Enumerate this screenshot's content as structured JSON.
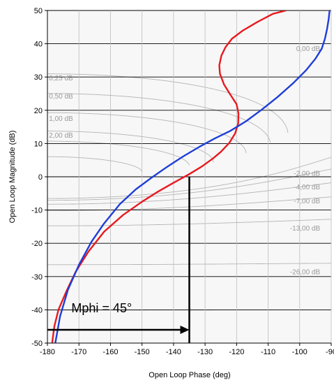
{
  "chart_data": {
    "type": "line",
    "xlabel": "Open Loop Phase (deg)",
    "ylabel": "Open Loop Magnitude (dB)",
    "xlim": [
      -180,
      -90
    ],
    "ylim": [
      -50,
      50
    ],
    "x_ticks": [
      -180,
      -170,
      -160,
      -150,
      -140,
      -130,
      -120,
      -110,
      -100,
      -90
    ],
    "x_tick_labels": [
      "-180",
      "-170",
      "-160",
      "-150",
      "-140",
      "-130",
      "-120",
      "-110",
      "-100",
      "-90"
    ],
    "y_ticks": [
      -50,
      -40,
      -30,
      -20,
      -10,
      0,
      10,
      20,
      30,
      40,
      50
    ],
    "y_tick_labels": [
      "-50",
      "-40",
      "-30",
      "-20",
      "-10",
      "0",
      "10",
      "20",
      "30",
      "40",
      "50"
    ],
    "grid": true,
    "background": "#f7f7f7",
    "contour_labels": [
      {
        "text": "0,00 dB",
        "x": -93.5,
        "y": 37.8,
        "anchor": "end"
      },
      {
        "text": "0,25 dB",
        "x": -179.5,
        "y": 29.0,
        "anchor": "start"
      },
      {
        "text": "0,50 dB",
        "x": -179.5,
        "y": 23.5,
        "anchor": "start"
      },
      {
        "text": "1,00 dB",
        "x": -179.5,
        "y": 16.8,
        "anchor": "start"
      },
      {
        "text": "2,00 dB",
        "x": -179.5,
        "y": 11.8,
        "anchor": "start"
      },
      {
        "text": "-2,00 dB",
        "x": -93.5,
        "y": 0.3,
        "anchor": "end"
      },
      {
        "text": "-4,00 dB",
        "x": -93.5,
        "y": -3.8,
        "anchor": "end"
      },
      {
        "text": "-7,00 dB",
        "x": -93.5,
        "y": -8.0,
        "anchor": "end"
      },
      {
        "text": "-13,00 dB",
        "x": -93.5,
        "y": -16.2,
        "anchor": "end"
      },
      {
        "text": "-26,00 dB",
        "x": -93.5,
        "y": -29.3,
        "anchor": "end"
      }
    ],
    "series": [
      {
        "color": "#e8191e",
        "x": [
          -178.5,
          -177.8,
          -176.5,
          -174,
          -171,
          -167,
          -162,
          -156,
          -150,
          -145,
          -140,
          -135,
          -131,
          -127.5,
          -125,
          -122.3,
          -120.5,
          -119.5,
          -119.4,
          -120,
          -122,
          -124,
          -125.3,
          -125.5,
          -124.8,
          -123.5,
          -121.5,
          -118,
          -113.5,
          -108.5,
          -104.3
        ],
        "y": [
          -50,
          -45,
          -40,
          -34.5,
          -28.5,
          -22.5,
          -16.5,
          -11.5,
          -7.5,
          -4.5,
          -1.8,
          0.8,
          3.1,
          5.5,
          7.5,
          10.2,
          13,
          16,
          19,
          21.8,
          24.7,
          27.8,
          31,
          33.5,
          36.5,
          39,
          41.5,
          44,
          46.5,
          49,
          50
        ]
      },
      {
        "color": "#1e3ed8",
        "x": [
          -177.5,
          -176,
          -173.5,
          -170,
          -166,
          -162,
          -157,
          -152,
          -147,
          -142,
          -137,
          -132,
          -127,
          -122,
          -117,
          -112,
          -107,
          -102,
          -98,
          -95,
          -93,
          -92,
          -91.3,
          -90.8,
          -90.5
        ],
        "y": [
          -50,
          -42,
          -34,
          -26.5,
          -19.5,
          -14,
          -8.2,
          -3.8,
          -0.3,
          3,
          6.1,
          8.9,
          11.5,
          13.8,
          16.7,
          20.2,
          24,
          28.2,
          32,
          35.5,
          38.5,
          41.5,
          44.5,
          47.5,
          50
        ]
      }
    ],
    "annotation": {
      "text": "Mphi = 45°",
      "phase_deg": -135,
      "arrow_from_x": -180,
      "arrow_y": -46
    }
  }
}
